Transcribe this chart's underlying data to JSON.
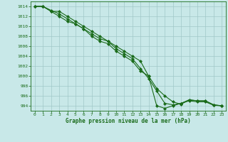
{
  "x": [
    0,
    1,
    2,
    3,
    4,
    5,
    6,
    7,
    8,
    9,
    10,
    11,
    12,
    13,
    14,
    15,
    16,
    17,
    18,
    19,
    20,
    21,
    22,
    23
  ],
  "line1": [
    1014,
    1014,
    1013,
    1013,
    1012,
    1011,
    1010,
    1009,
    1008,
    1007,
    1006,
    1005,
    1004,
    1003,
    1000,
    994,
    993.5,
    994,
    994.5,
    995,
    994.8,
    994.8,
    994.1,
    994
  ],
  "line2": [
    1014,
    1014,
    1013.2,
    1012.5,
    1011.5,
    1010.5,
    1009.5,
    1008.5,
    1007.5,
    1007,
    1005.5,
    1004.5,
    1003.5,
    1001.5,
    999.5,
    997,
    994.5,
    994.2,
    994.5,
    995.2,
    995,
    995,
    994.2,
    994
  ],
  "line3": [
    1014,
    1014,
    1013,
    1012,
    1011,
    1010.5,
    1009.5,
    1008,
    1007,
    1006.5,
    1005,
    1004,
    1003,
    1001,
    1000,
    997.5,
    996,
    994.8,
    994.3,
    995.2,
    995,
    995,
    994.2,
    994
  ],
  "ylim": [
    993,
    1015
  ],
  "xlim": [
    -0.5,
    23.5
  ],
  "yticks": [
    994,
    996,
    998,
    1000,
    1002,
    1004,
    1006,
    1008,
    1010,
    1012,
    1014
  ],
  "xticks": [
    0,
    1,
    2,
    3,
    4,
    5,
    6,
    7,
    8,
    9,
    10,
    11,
    12,
    13,
    14,
    15,
    16,
    17,
    18,
    19,
    20,
    21,
    22,
    23
  ],
  "line_color": "#1a6b1a",
  "bg_color": "#c8e8e8",
  "grid_color": "#a0c8c8",
  "xlabel": "Graphe pression niveau de la mer (hPa)",
  "xlabel_color": "#1a6b1a",
  "marker": "D",
  "marker_size": 2.0,
  "linewidth": 0.8
}
